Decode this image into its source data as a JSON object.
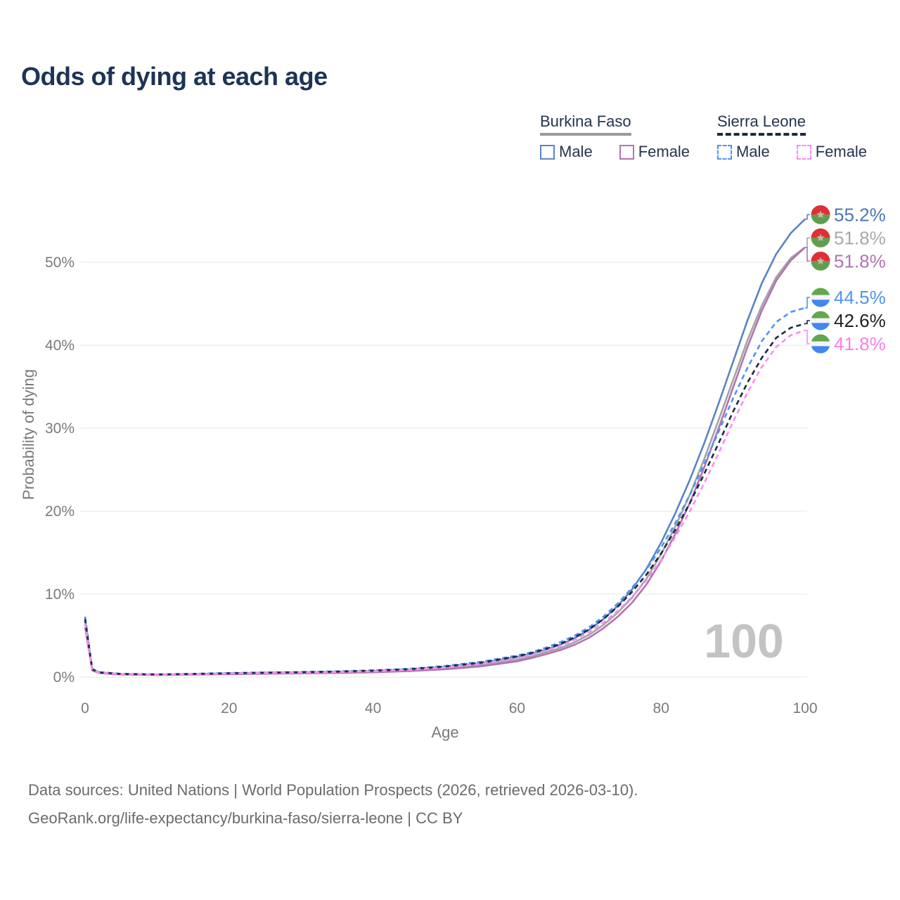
{
  "title": "Odds of dying at each age",
  "legend": {
    "groups": [
      {
        "name": "Burkina Faso",
        "line_style": "solid",
        "underline_color": "#9a9a9a",
        "items": [
          {
            "label": "Male",
            "color": "#5b84c4",
            "dashed": false
          },
          {
            "label": "Female",
            "color": "#b273b2",
            "dashed": false
          }
        ]
      },
      {
        "name": "Sierra Leone",
        "line_style": "dashed",
        "underline_color": "#1b2a41",
        "items": [
          {
            "label": "Male",
            "color": "#4d94f2",
            "dashed": true
          },
          {
            "label": "Female",
            "color": "#fb8cf2",
            "dashed": true
          }
        ]
      }
    ]
  },
  "watermark": "100",
  "chart_data": {
    "type": "line",
    "title": "Odds of dying at each age",
    "xlabel": "Age",
    "ylabel": "Probability of dying",
    "x_ticks": [
      0,
      20,
      40,
      60,
      80,
      100
    ],
    "y_tick_labels": [
      "0%",
      "10%",
      "20%",
      "30%",
      "40%",
      "50%"
    ],
    "y_tick_values": [
      0,
      10,
      20,
      30,
      40,
      50
    ],
    "xlim": [
      0,
      100
    ],
    "ylim": [
      0,
      58
    ],
    "grid": "horizontal",
    "ages": [
      0,
      1,
      2,
      5,
      10,
      15,
      20,
      25,
      30,
      35,
      40,
      45,
      50,
      55,
      60,
      62,
      64,
      66,
      68,
      70,
      72,
      74,
      76,
      78,
      80,
      82,
      84,
      86,
      88,
      90,
      92,
      94,
      96,
      98,
      100
    ],
    "series": [
      {
        "name": "Burkina Faso Male",
        "country": "Burkina Faso",
        "sex": "Male",
        "color": "#5b84c4",
        "dash": "solid",
        "flag": "burkina-faso",
        "end_label": "55.2%",
        "end_value": 55.2,
        "label_color": "#4a77b4",
        "values": [
          6.8,
          0.9,
          0.55,
          0.35,
          0.3,
          0.35,
          0.45,
          0.5,
          0.55,
          0.62,
          0.72,
          0.9,
          1.2,
          1.65,
          2.4,
          2.8,
          3.3,
          3.9,
          4.7,
          5.7,
          7.0,
          8.6,
          10.6,
          13.1,
          16.2,
          19.8,
          23.8,
          28.2,
          33.0,
          38.0,
          43.0,
          47.5,
          51.0,
          53.5,
          55.2
        ]
      },
      {
        "name": "Burkina Faso Both sexes",
        "country": "Burkina Faso",
        "sex": "Both",
        "color": "#a3a3a3",
        "dash": "solid",
        "flag": "burkina-faso",
        "end_label": "51.8%",
        "end_value": 51.8,
        "label_color": "#a8a8a8",
        "values": [
          6.4,
          0.85,
          0.5,
          0.33,
          0.28,
          0.32,
          0.4,
          0.45,
          0.5,
          0.56,
          0.65,
          0.8,
          1.05,
          1.45,
          2.1,
          2.5,
          3.0,
          3.5,
          4.2,
          5.1,
          6.3,
          7.8,
          9.6,
          11.9,
          14.8,
          18.2,
          22.0,
          26.3,
          31.0,
          35.8,
          40.6,
          44.8,
          48.2,
          50.5,
          51.8
        ]
      },
      {
        "name": "Burkina Faso Female",
        "country": "Burkina Faso",
        "sex": "Female",
        "color": "#b273b2",
        "dash": "solid",
        "flag": "burkina-faso",
        "end_label": "51.8%",
        "end_value": 51.8,
        "label_color": "#b273b2",
        "values": [
          6.0,
          0.8,
          0.48,
          0.3,
          0.26,
          0.3,
          0.36,
          0.4,
          0.45,
          0.5,
          0.58,
          0.72,
          0.95,
          1.3,
          1.9,
          2.3,
          2.75,
          3.25,
          3.9,
          4.75,
          5.9,
          7.3,
          9.0,
          11.2,
          14.0,
          17.3,
          21.0,
          25.3,
          30.0,
          34.9,
          39.8,
          44.2,
          47.8,
          50.2,
          51.8
        ]
      },
      {
        "name": "Sierra Leone Male",
        "country": "Sierra Leone",
        "sex": "Male",
        "color": "#4d94f2",
        "dash": "dashed",
        "flag": "sierra-leone",
        "end_label": "44.5%",
        "end_value": 44.5,
        "label_color": "#4d94f2",
        "values": [
          7.3,
          1.0,
          0.6,
          0.4,
          0.34,
          0.4,
          0.5,
          0.56,
          0.62,
          0.7,
          0.82,
          1.0,
          1.35,
          1.85,
          2.6,
          3.0,
          3.55,
          4.2,
          5.0,
          6.0,
          7.3,
          8.9,
          10.8,
          13.0,
          15.6,
          18.6,
          22.0,
          25.7,
          29.6,
          33.6,
          37.3,
          40.5,
          42.8,
          44.0,
          44.5
        ]
      },
      {
        "name": "Sierra Leone Both sexes",
        "country": "Sierra Leone",
        "sex": "Both",
        "color": "#1b2a41",
        "dash": "dashed",
        "flag": "sierra-leone",
        "end_label": "42.6%",
        "end_value": 42.6,
        "label_color": "#1f1f1f",
        "values": [
          7.0,
          0.95,
          0.57,
          0.38,
          0.32,
          0.38,
          0.47,
          0.53,
          0.59,
          0.66,
          0.78,
          0.95,
          1.28,
          1.75,
          2.5,
          2.9,
          3.4,
          4.0,
          4.8,
          5.75,
          7.0,
          8.5,
          10.3,
          12.4,
          14.9,
          17.8,
          21.0,
          24.5,
          28.2,
          32.0,
          35.5,
          38.5,
          40.9,
          42.1,
          42.6
        ]
      },
      {
        "name": "Sierra Leone Female",
        "country": "Sierra Leone",
        "sex": "Female",
        "color": "#fb8cf2",
        "dash": "dashed",
        "flag": "sierra-leone",
        "end_label": "41.8%",
        "end_value": 41.8,
        "label_color": "#fb7ef0",
        "values": [
          6.5,
          0.88,
          0.53,
          0.35,
          0.3,
          0.35,
          0.43,
          0.48,
          0.54,
          0.6,
          0.7,
          0.87,
          1.15,
          1.6,
          2.3,
          2.7,
          3.2,
          3.75,
          4.5,
          5.4,
          6.6,
          8.0,
          9.7,
          11.7,
          14.1,
          16.9,
          20.0,
          23.4,
          27.0,
          30.8,
          34.3,
          37.4,
          39.8,
          41.2,
          41.8
        ]
      }
    ]
  },
  "flags": {
    "burkina_faso": {
      "red": "#de3036",
      "green": "#5f9e4e",
      "star": "#c3baa2"
    },
    "sierra_leone": {
      "green": "#62a750",
      "white": "#f4f4f4",
      "blue": "#4087f0"
    }
  },
  "footer": {
    "line1": "Data sources: United Nations | World Population Prospects (2026, retrieved 2026-03-10).",
    "line2": "GeoRank.org/life-expectancy/burkina-faso/sierra-leone | CC BY"
  }
}
